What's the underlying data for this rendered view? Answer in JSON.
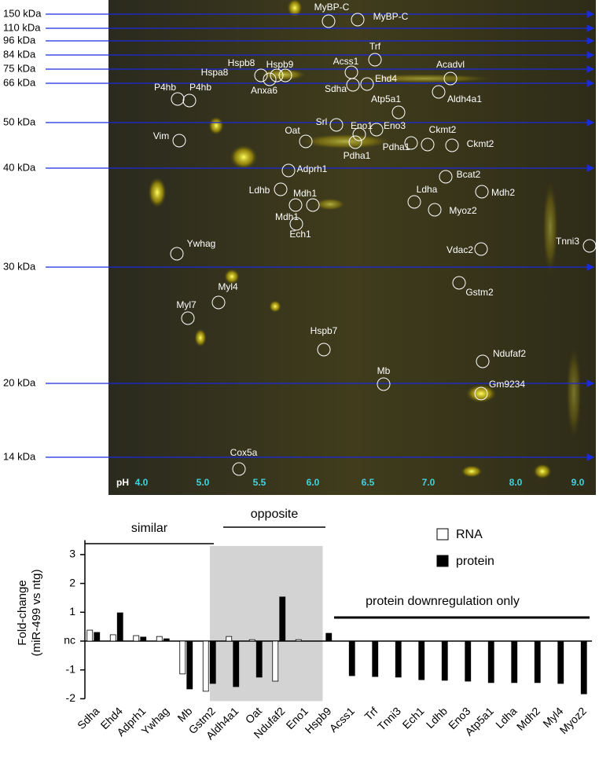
{
  "gel": {
    "mw_markers": [
      "150 kDa",
      "110 kDa",
      "96 kDa",
      "84 kDa",
      "75 kDa",
      "66 kDa",
      "50 kDa",
      "40 kDa",
      "30 kDa",
      "20 kDa",
      "14 kDa"
    ],
    "ph_label": "pH",
    "ph_values": [
      "4.0",
      "5.0",
      "5.5",
      "6.0",
      "6.5",
      "7.0",
      "8.0",
      "9.0"
    ],
    "spots": [
      "MyBP-C",
      "MyBP-C",
      "Trf",
      "Acss1",
      "Hspb8",
      "Hspb9",
      "Hspa8",
      "Acadvl",
      "Ehd4",
      "Sdha",
      "Anxa6",
      "P4hb",
      "P4hb",
      "Aldh4a1",
      "Atp5a1",
      "Srl",
      "Eno1",
      "Eno3",
      "Ckmt2",
      "Ckmt2",
      "Vim",
      "Oat",
      "Pdha1",
      "Pdha1",
      "Adprh1",
      "Bcat2",
      "Ldhb",
      "Mdh1",
      "Mdh2",
      "Ldha",
      "Mdh1",
      "Myoz2",
      "Ech1",
      "Ywhag",
      "Vdac2",
      "Tnni3",
      "Gstm2",
      "Myl4",
      "Myl7",
      "Hspb7",
      "Ndufaf2",
      "Mb",
      "Gm9234",
      "Cox5a"
    ]
  },
  "chart_data": {
    "type": "bar",
    "ylabel": [
      "Fold-change",
      "(miR-499 vs ntg)"
    ],
    "categories": [
      "Sdha",
      "Ehd4",
      "Adprh1",
      "Ywhag",
      "Mb",
      "Gstm2",
      "Aldh4a1",
      "Oat",
      "Ndufaf2",
      "Eno1",
      "Hspb9",
      "Acss1",
      "Trf",
      "Tnni3",
      "Ech1",
      "Ldhb",
      "Eno3",
      "Atp5a1",
      "Ldha",
      "Mdh2",
      "Myl4",
      "Myoz2"
    ],
    "series": [
      {
        "name": "RNA",
        "color": "#ffffff",
        "values": [
          0.38,
          0.22,
          0.19,
          0.16,
          -1.14,
          -1.74,
          0.16,
          0.05,
          -1.39,
          0.05,
          null,
          null,
          null,
          null,
          null,
          null,
          null,
          null,
          null,
          null,
          null,
          null
        ]
      },
      {
        "name": "protein",
        "color": "#000000",
        "values": [
          0.3,
          0.98,
          0.14,
          0.08,
          -1.66,
          -1.47,
          -1.58,
          -1.25,
          1.53,
          null,
          0.27,
          -1.2,
          -1.23,
          -1.25,
          -1.34,
          -1.36,
          -1.39,
          -1.44,
          -1.44,
          -1.44,
          -1.47,
          -1.83
        ]
      }
    ],
    "ylim": [
      -2,
      3.5
    ],
    "yticks": [
      3,
      2,
      1,
      {
        "value": 0,
        "label": "nc"
      },
      -1,
      -2
    ],
    "annotations": [
      "similar",
      "opposite",
      "protein downregulation only"
    ],
    "legend": "upper-right"
  }
}
